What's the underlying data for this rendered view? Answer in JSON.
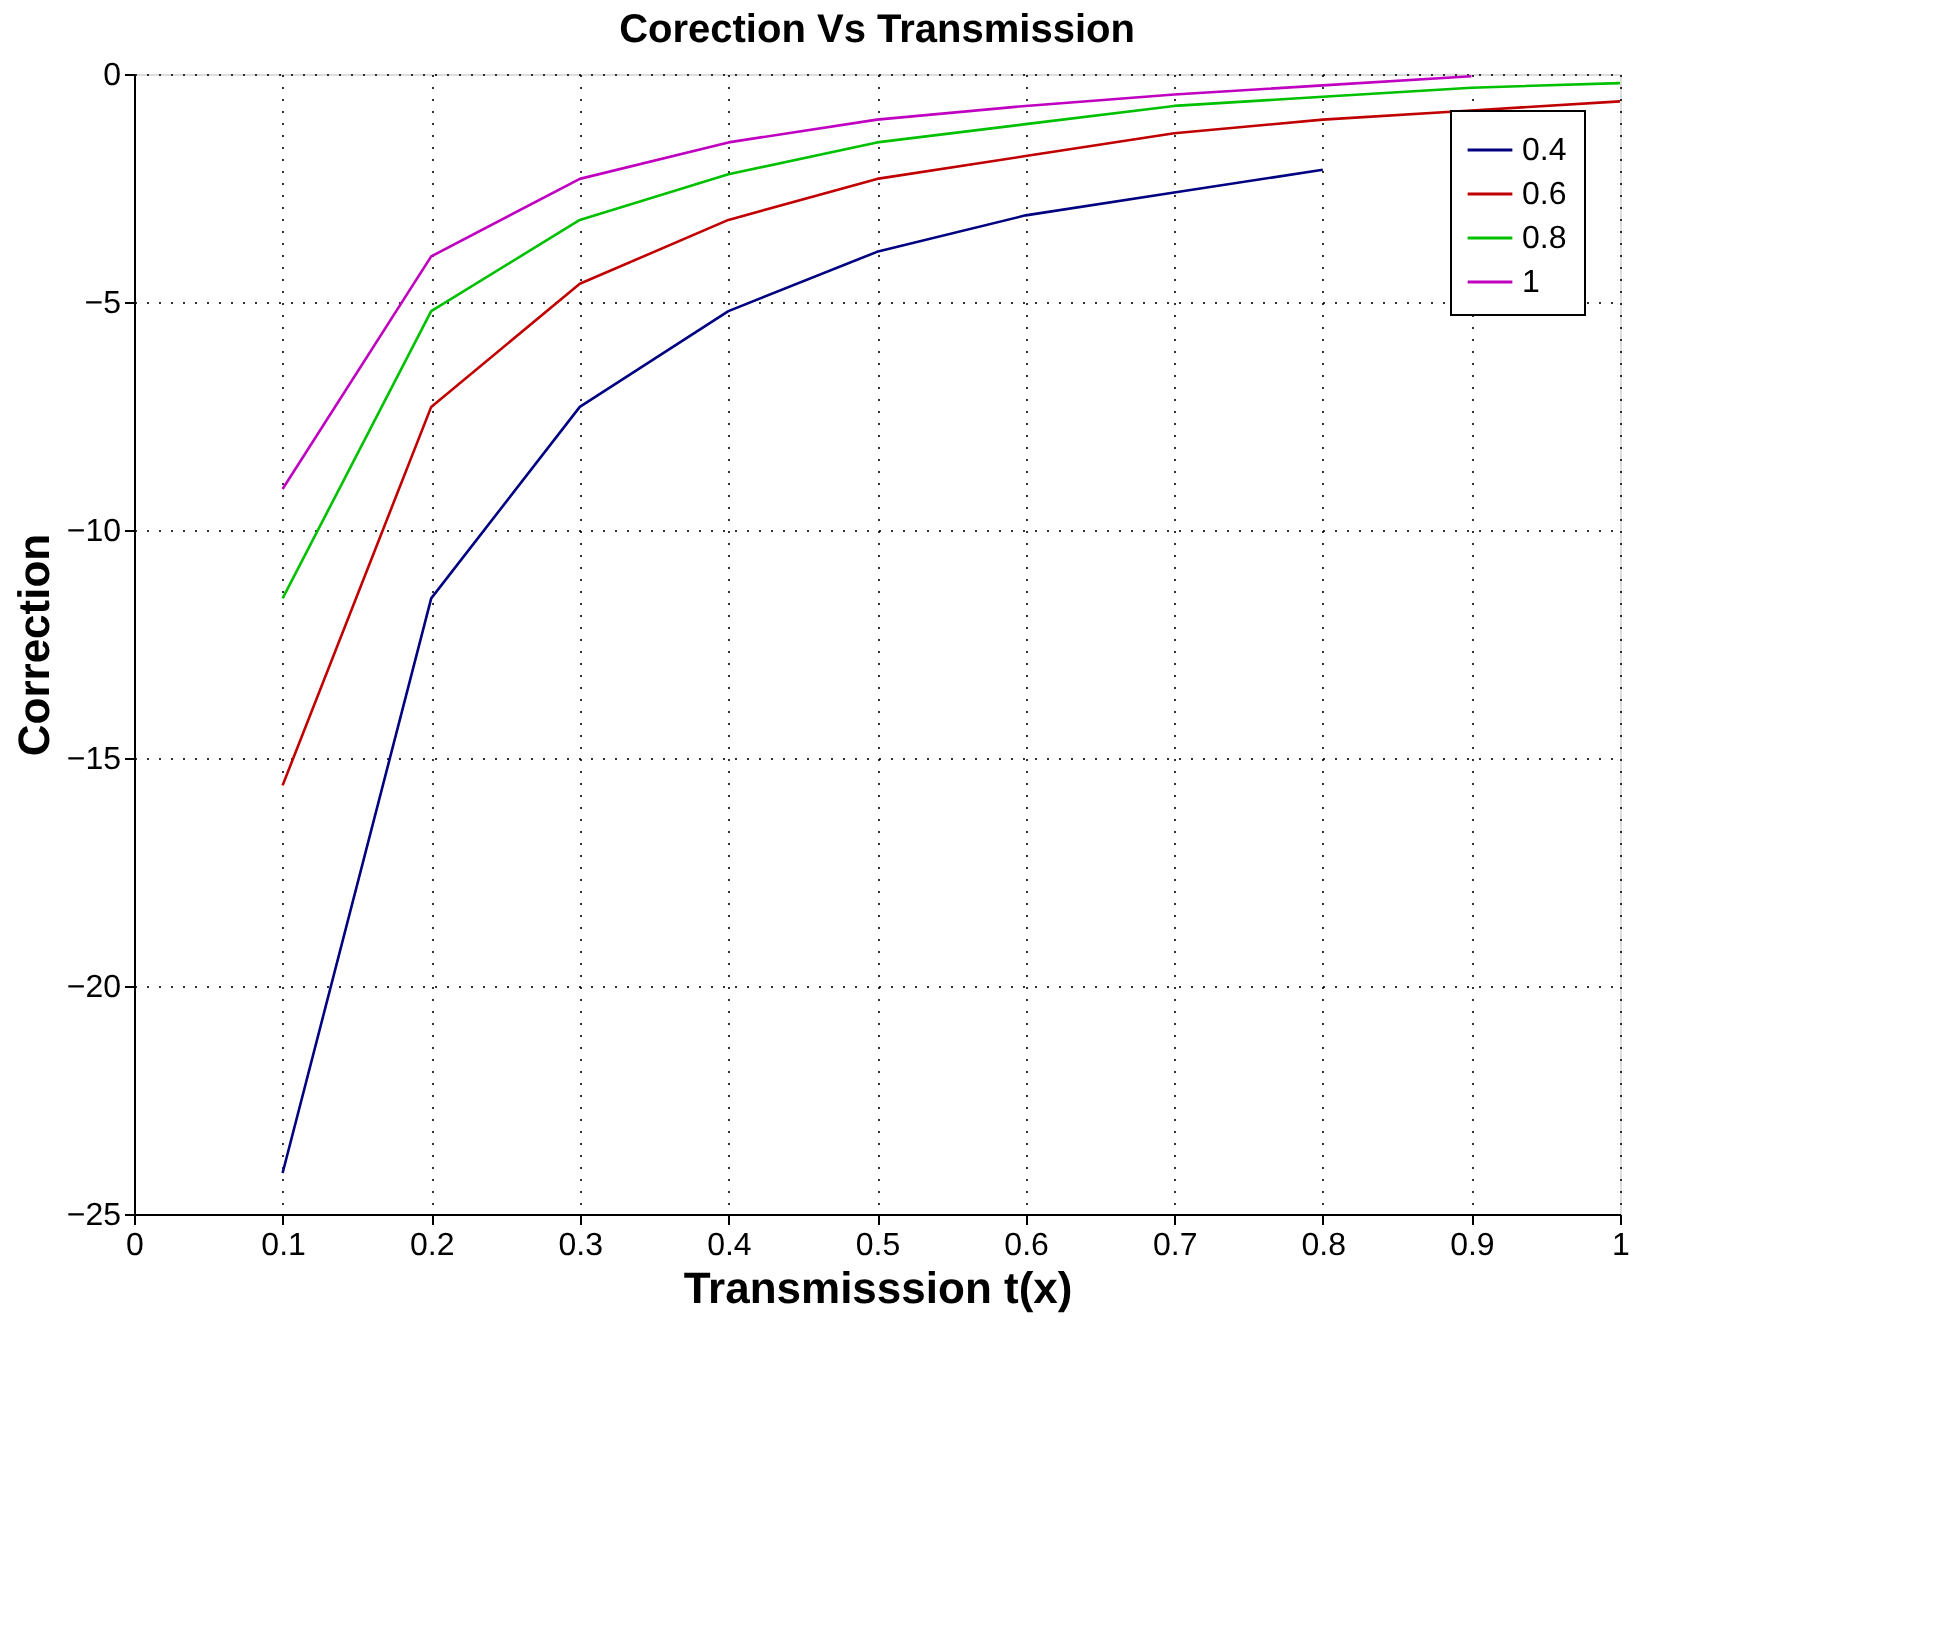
{
  "chart_data": {
    "type": "line",
    "title": "Corection Vs Transmission",
    "xlabel": "Transmisssion t(x)",
    "ylabel": "Correction",
    "x": [
      0.1,
      0.2,
      0.3,
      0.4,
      0.5,
      0.6,
      0.7,
      0.8,
      0.9,
      1.0
    ],
    "series": [
      {
        "name": "0.4",
        "color": "#000080",
        "values": [
          -24.1,
          -11.5,
          -7.3,
          -5.2,
          -3.9,
          -3.1,
          -2.6,
          -2.1,
          null,
          null
        ]
      },
      {
        "name": "0.6",
        "color": "#c00000",
        "values": [
          -15.6,
          -7.3,
          -4.6,
          -3.2,
          -2.3,
          -1.8,
          -1.3,
          -1.0,
          -0.8,
          -0.6
        ]
      },
      {
        "name": "0.8",
        "color": "#00c000",
        "values": [
          -11.5,
          -5.2,
          -3.2,
          -2.2,
          -1.5,
          -1.1,
          -0.7,
          -0.5,
          -0.3,
          -0.2
        ]
      },
      {
        "name": "1",
        "color": "#c000c0",
        "values": [
          -9.1,
          -4.0,
          -2.3,
          -1.5,
          -1.0,
          -0.7,
          -0.45,
          -0.25,
          -0.05,
          null
        ]
      }
    ],
    "xlim": [
      0,
      1
    ],
    "xticks": [
      0,
      0.1,
      0.2,
      0.3,
      0.4,
      0.5,
      0.6,
      0.7,
      0.8,
      0.9,
      1
    ],
    "ylim": [
      -25,
      0
    ],
    "yticks": [
      -25,
      -20,
      -15,
      -10,
      -5,
      0
    ],
    "grid": true,
    "legend": "top right",
    "line_style": "solid",
    "marker": "none"
  }
}
